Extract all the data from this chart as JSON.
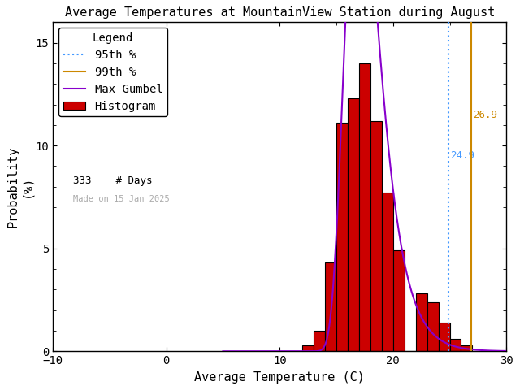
{
  "title": "Average Temperatures at MountainView Station during August",
  "xlabel": "Average Temperature (C)",
  "ylabel": "Probability\n(%)",
  "xlim": [
    -10,
    30
  ],
  "ylim": [
    0,
    16
  ],
  "xticks": [
    -10,
    0,
    10,
    20,
    30
  ],
  "yticks": [
    0,
    5,
    10,
    15
  ],
  "bin_edges": [
    12,
    13,
    14,
    15,
    16,
    17,
    18,
    19,
    20,
    21,
    22,
    23,
    24,
    25,
    26,
    27
  ],
  "bin_heights": [
    0.3,
    1.0,
    4.3,
    11.1,
    12.3,
    14.0,
    11.2,
    7.7,
    4.9,
    0.0,
    2.8,
    2.4,
    1.4,
    0.6,
    0.3,
    0.0
  ],
  "hist_color": "#cc0000",
  "hist_edgecolor": "#000000",
  "gumbel_mu": 17.0,
  "gumbel_beta": 1.5,
  "gumbel_scale": 100.0,
  "percentile_95": 24.9,
  "percentile_99": 26.9,
  "percentile_95_color": "#4499ff",
  "percentile_99_color": "#cc8800",
  "gumbel_color": "#8800cc",
  "n_days": 333,
  "made_on": "Made on 15 Jan 2025",
  "background_color": "#ffffff",
  "title_fontsize": 11,
  "axis_fontsize": 11,
  "tick_fontsize": 10,
  "legend_fontsize": 10
}
